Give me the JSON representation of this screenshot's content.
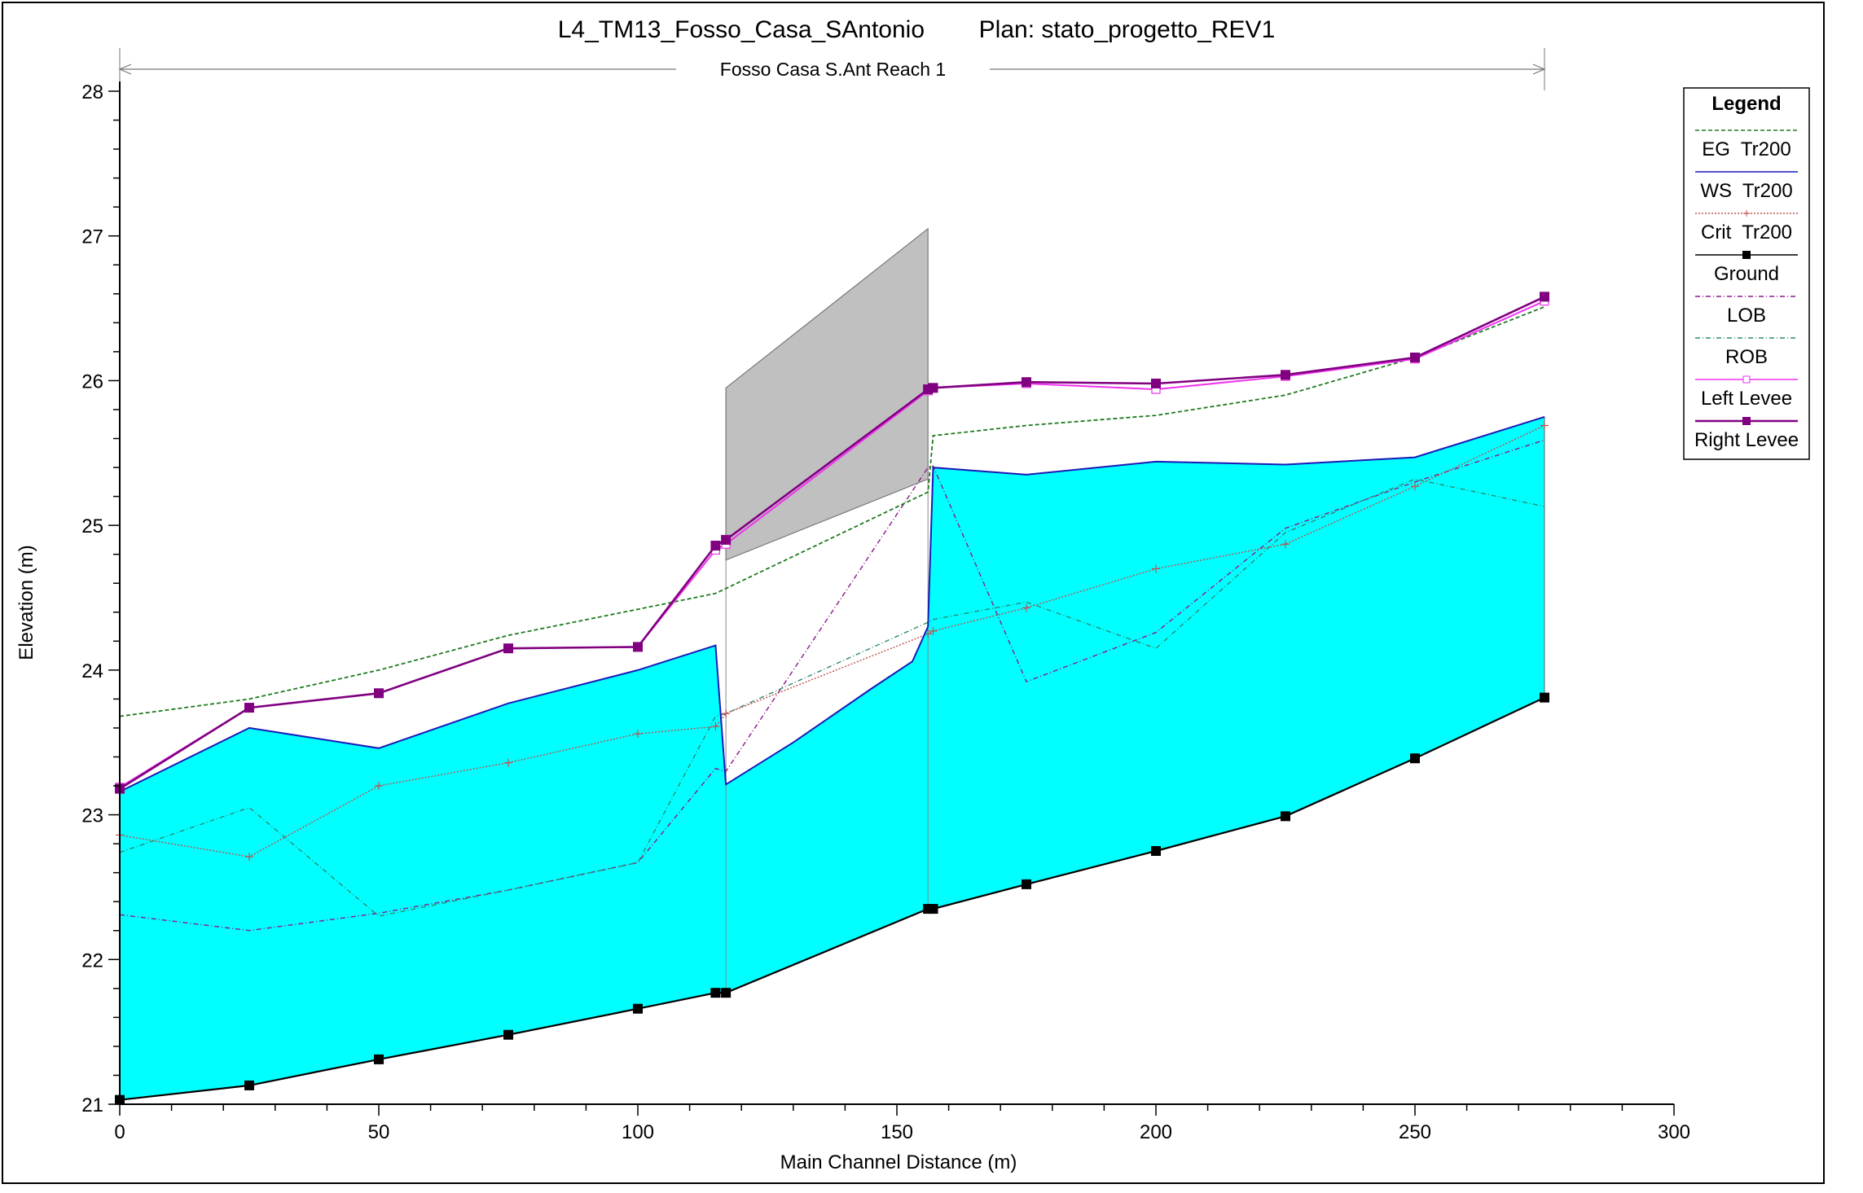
{
  "chart_data": {
    "type": "line",
    "title": "L4_TM13_Fosso_Casa_SAntonio        Plan: stato_progetto_REV1",
    "reach_label": "Fosso Casa S.Ant Reach 1",
    "xlabel": "Main Channel Distance (m)",
    "ylabel": "Elevation (m)",
    "xlim": [
      0,
      300
    ],
    "ylim": [
      21,
      28
    ],
    "xticks": [
      0,
      50,
      100,
      150,
      200,
      250,
      300
    ],
    "yticks": [
      21,
      22,
      23,
      24,
      25,
      26,
      27,
      28
    ],
    "legend_title": "Legend",
    "legend_position": "right",
    "bridge_deck": [
      [
        117,
        25.95
      ],
      [
        156,
        27.05
      ],
      [
        156,
        25.32
      ],
      [
        117,
        24.76
      ]
    ],
    "series": [
      {
        "name": "EG  Tr200",
        "color": "#1f7a1f",
        "dash": "5,3",
        "marker": "none",
        "x": [
          0,
          25,
          50,
          75,
          100,
          115,
          156,
          157,
          175,
          200,
          225,
          250,
          275
        ],
        "y": [
          23.68,
          23.8,
          24.0,
          24.24,
          24.42,
          24.53,
          25.23,
          25.62,
          25.69,
          25.76,
          25.9,
          26.16,
          26.51
        ]
      },
      {
        "name": "WS  Tr200",
        "color": "#1a1ab8",
        "dash": "",
        "marker": "none",
        "x": [
          0,
          25,
          50,
          75,
          100,
          115,
          117,
          130,
          145,
          153,
          156,
          157,
          175,
          200,
          225,
          250,
          275
        ],
        "y": [
          23.16,
          23.6,
          23.46,
          23.77,
          24.0,
          24.17,
          23.21,
          23.5,
          23.87,
          24.06,
          24.3,
          25.4,
          25.35,
          25.44,
          25.42,
          25.47,
          25.75
        ]
      },
      {
        "name": "Crit  Tr200",
        "color": "#c0504d",
        "dash": "2,2",
        "marker": "plus",
        "x": [
          0,
          25,
          50,
          75,
          100,
          115,
          117,
          156,
          157,
          175,
          200,
          225,
          250,
          275
        ],
        "y": [
          22.86,
          22.71,
          23.2,
          23.36,
          23.56,
          23.61,
          23.7,
          24.25,
          24.27,
          24.43,
          24.7,
          24.87,
          25.27,
          25.69
        ]
      },
      {
        "name": "Ground",
        "color": "#000000",
        "dash": "",
        "marker": "square",
        "x": [
          0,
          25,
          50,
          75,
          100,
          115,
          117,
          156,
          157,
          175,
          200,
          225,
          250,
          275
        ],
        "y": [
          21.03,
          21.13,
          21.31,
          21.48,
          21.66,
          21.77,
          21.77,
          22.35,
          22.35,
          22.52,
          22.75,
          22.99,
          23.39,
          23.81
        ]
      },
      {
        "name": "LOB",
        "color": "#8b1a8b",
        "dash": "6,3,1,3",
        "marker": "none",
        "x": [
          0,
          25,
          50,
          75,
          100,
          115,
          117,
          156,
          157,
          175,
          200,
          225,
          250,
          275
        ],
        "y": [
          22.31,
          22.2,
          22.32,
          22.48,
          22.67,
          23.32,
          23.3,
          25.4,
          25.41,
          23.92,
          24.26,
          24.98,
          25.3,
          25.59
        ]
      },
      {
        "name": "ROB",
        "color": "#2e8b72",
        "dash": "6,3,1,3",
        "marker": "none",
        "x": [
          0,
          25,
          50,
          75,
          100,
          115,
          117,
          156,
          157,
          175,
          200,
          225,
          250,
          275
        ],
        "y": [
          22.74,
          23.05,
          22.3,
          22.48,
          22.67,
          23.68,
          23.7,
          24.33,
          24.35,
          24.47,
          24.15,
          24.95,
          25.32,
          25.13
        ]
      },
      {
        "name": "Left Levee",
        "color": "#ee33ee",
        "dash": "",
        "marker": "open-square",
        "x": [
          0,
          25,
          50,
          75,
          100,
          115,
          117,
          156,
          157,
          175,
          200,
          225,
          250,
          275
        ],
        "y": [
          23.19,
          23.74,
          23.84,
          24.15,
          24.16,
          24.83,
          24.87,
          25.93,
          25.95,
          25.98,
          25.94,
          26.03,
          26.15,
          26.55
        ]
      },
      {
        "name": "Right Levee",
        "color": "#800080",
        "dash": "",
        "marker": "filled-square",
        "x": [
          0,
          25,
          50,
          75,
          100,
          115,
          117,
          156,
          157,
          175,
          200,
          225,
          250,
          275
        ],
        "y": [
          23.18,
          23.74,
          23.84,
          24.15,
          24.16,
          24.86,
          24.9,
          25.94,
          25.95,
          25.99,
          25.98,
          26.04,
          26.16,
          26.58
        ]
      }
    ]
  }
}
